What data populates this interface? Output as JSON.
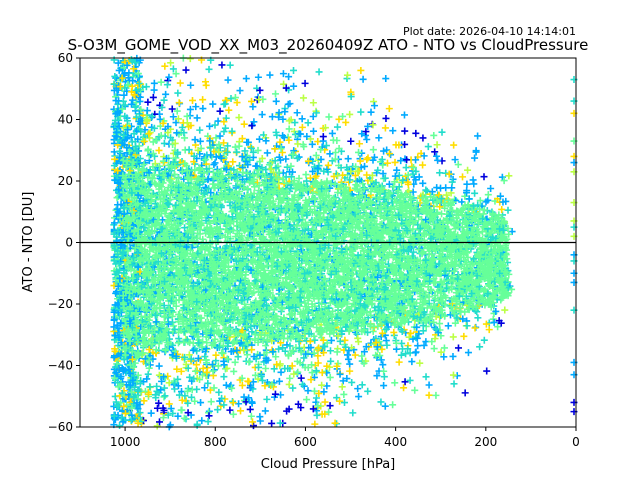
{
  "chart_data": {
    "type": "scatter",
    "title": "S-O3M_GOME_VOD_XX_M03_20260409Z ATO - NTO vs CloudPressure",
    "plot_date": "Plot date: 2026-04-10 14:14:01",
    "xlabel": "Cloud Pressure [hPa]",
    "ylabel": "ATO - NTO [DU]",
    "xlim": [
      1100,
      0
    ],
    "ylim": [
      -60,
      60
    ],
    "x_inverted": true,
    "xticks": [
      1000,
      800,
      600,
      400,
      200,
      0
    ],
    "xtick_labels": [
      "1000",
      "800",
      "600",
      "400",
      "200",
      "0"
    ],
    "yticks": [
      -60,
      -40,
      -20,
      0,
      20,
      40,
      60
    ],
    "ytick_labels": [
      "−60",
      "−40",
      "−20",
      "0",
      "20",
      "40",
      "60"
    ],
    "reference_line_y": 0,
    "marker": "plus",
    "grid": false,
    "series_colors": [
      "#0000dd",
      "#00aaff",
      "#22ddcc",
      "#66ff99",
      "#bbff44",
      "#ffdd00"
    ],
    "main_cluster": {
      "x_range": [
        1025,
        140
      ],
      "center_y": -5,
      "dense_spread_y": 30
    },
    "zero_pressure_points": [
      {
        "y": 53,
        "color": "#22ddcc"
      },
      {
        "y": 46,
        "color": "#22ddcc"
      },
      {
        "y": 42,
        "color": "#ffdd00"
      },
      {
        "y": 33,
        "color": "#66ff99"
      },
      {
        "y": 28,
        "color": "#ffdd00"
      },
      {
        "y": 26,
        "color": "#00aaff"
      },
      {
        "y": 23,
        "color": "#bbff44"
      },
      {
        "y": 13,
        "color": "#bbff44"
      },
      {
        "y": 7,
        "color": "#bbff44"
      },
      {
        "y": 5,
        "color": "#22ddcc"
      },
      {
        "y": 2,
        "color": "#bbff44"
      },
      {
        "y": -4,
        "color": "#00aaff"
      },
      {
        "y": -6,
        "color": "#22ddcc"
      },
      {
        "y": -10,
        "color": "#00aaff"
      },
      {
        "y": -13,
        "color": "#00aaff"
      },
      {
        "y": -22,
        "color": "#22ddcc"
      },
      {
        "y": -39,
        "color": "#00aaff"
      },
      {
        "y": -43,
        "color": "#00aaff"
      },
      {
        "y": -52,
        "color": "#0000dd"
      },
      {
        "y": -55,
        "color": "#0000dd"
      }
    ]
  }
}
